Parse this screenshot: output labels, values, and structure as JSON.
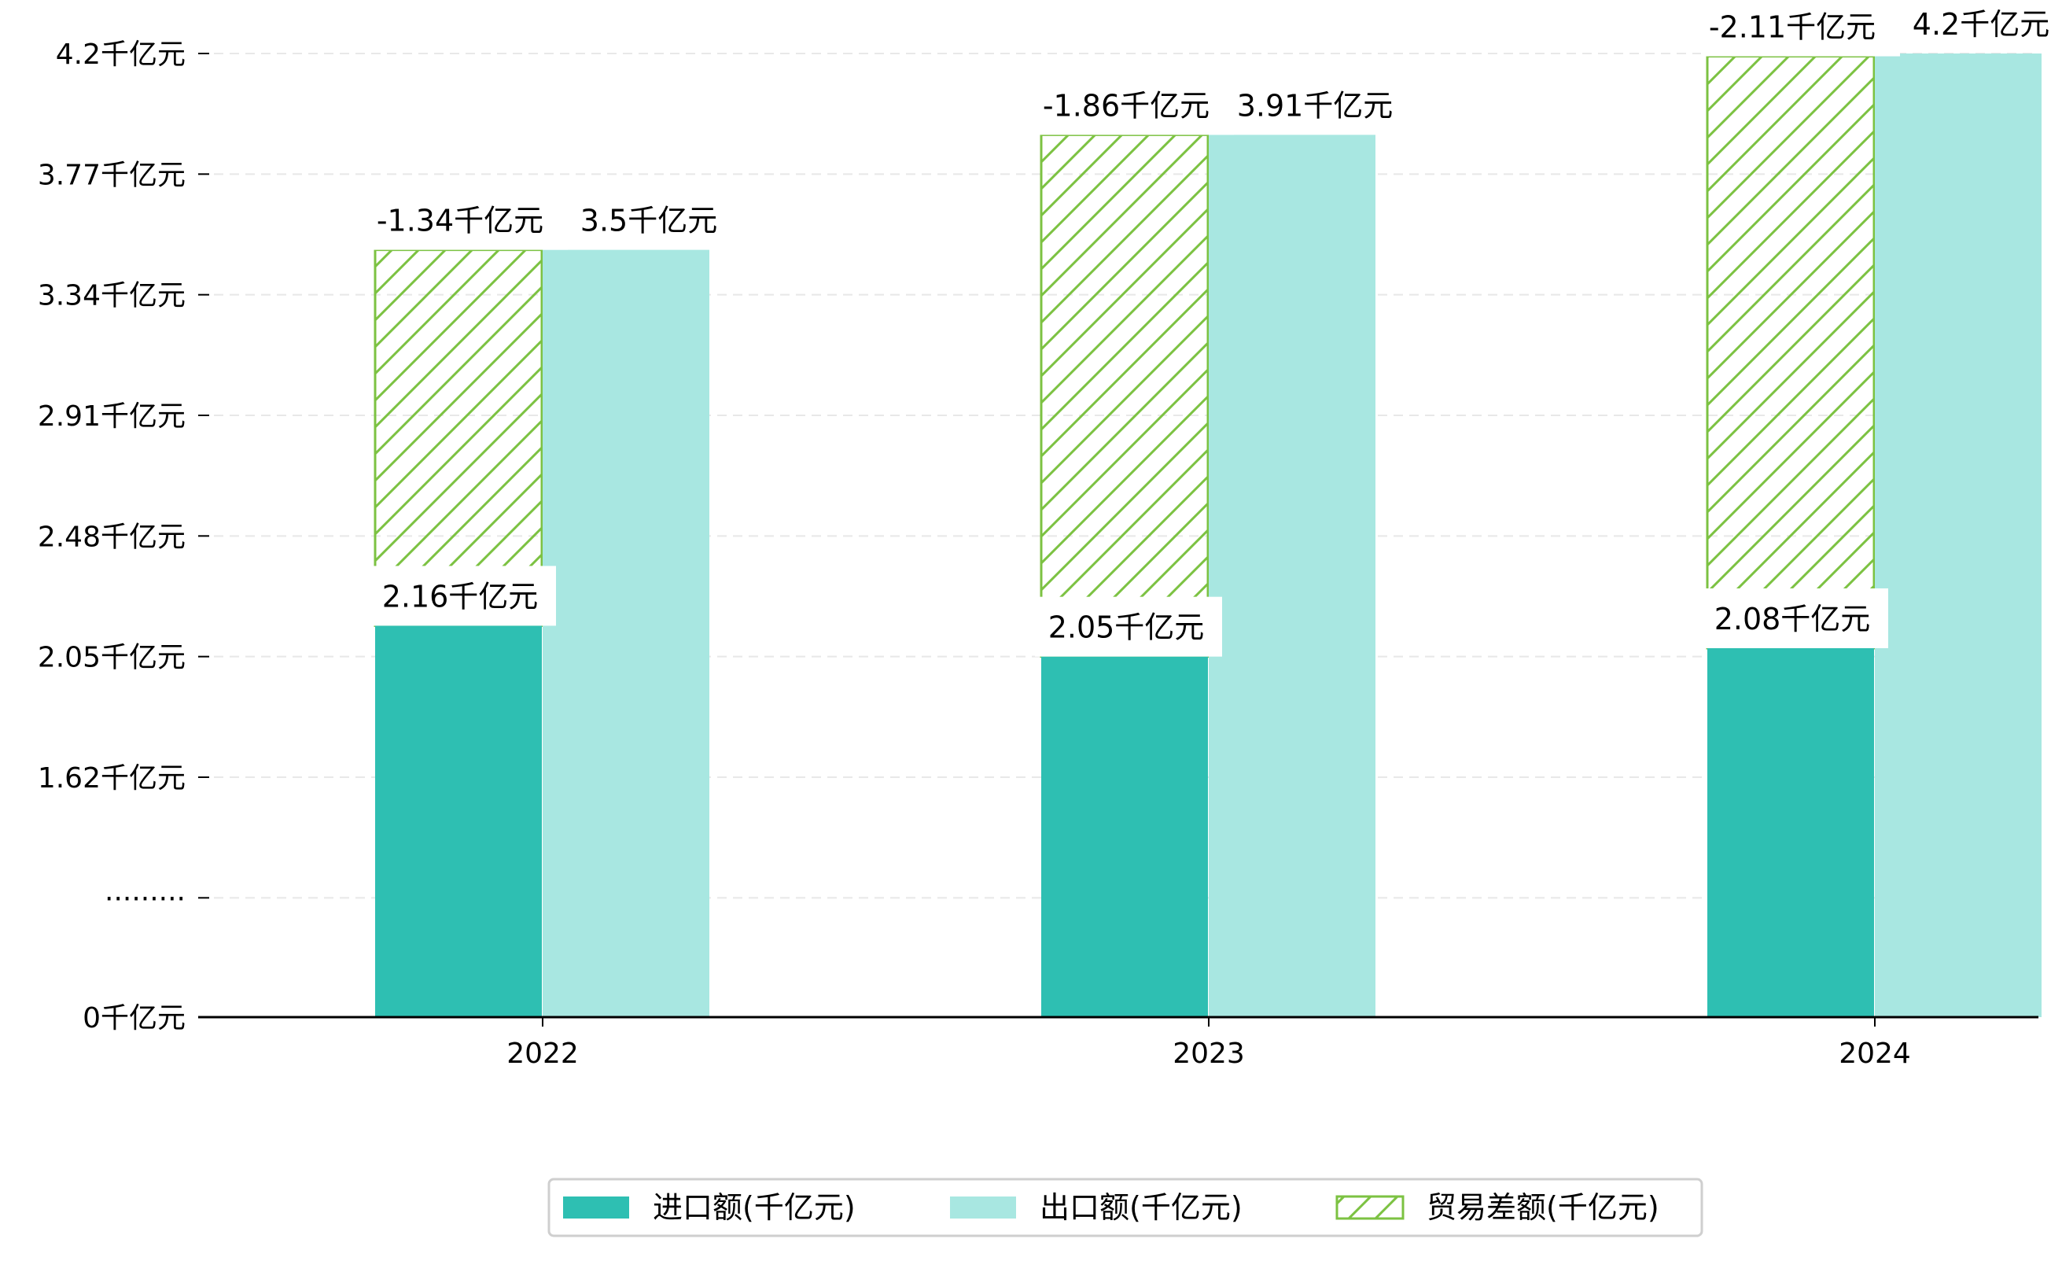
{
  "chart_data": {
    "type": "bar",
    "categories": [
      "2022",
      "2023",
      "2024"
    ],
    "series": [
      {
        "name": "进口额(千亿元)",
        "values": [
          2.16,
          2.05,
          2.08
        ],
        "labels": [
          "2.16千亿元",
          "2.05千亿元",
          "2.08千亿元"
        ],
        "color": "#2ebfb2"
      },
      {
        "name": "出口额(千亿元)",
        "values": [
          3.5,
          3.91,
          4.2
        ],
        "labels": [
          "3.5千亿元",
          "3.91千亿元",
          "4.2千亿元"
        ],
        "color": "#a8e7e1"
      },
      {
        "name": "贸易差额(千亿元)",
        "values": [
          -1.34,
          -1.86,
          -2.11
        ],
        "labels": [
          "-1.34千亿元",
          "-1.86千亿元",
          "-2.11千亿元"
        ],
        "color": "#7cc242",
        "pattern": "hatch"
      }
    ],
    "y_ticks": [
      {
        "value": 0,
        "label": "0千亿元"
      },
      {
        "value": 1.19,
        "label": "·········"
      },
      {
        "value": 1.62,
        "label": "1.62千亿元"
      },
      {
        "value": 2.05,
        "label": "2.05千亿元"
      },
      {
        "value": 2.48,
        "label": "2.48千亿元"
      },
      {
        "value": 2.91,
        "label": "2.91千亿元"
      },
      {
        "value": 3.34,
        "label": "3.34千亿元"
      },
      {
        "value": 3.77,
        "label": "3.77千亿元"
      },
      {
        "value": 4.2,
        "label": "4.2千亿元"
      }
    ],
    "y_axis_break": {
      "below": 1.62,
      "marker": "·········"
    },
    "ylim": [
      0,
      4.2
    ],
    "grid": true,
    "legend_position": "bottom-center",
    "title": "",
    "xlabel": "",
    "ylabel": ""
  }
}
